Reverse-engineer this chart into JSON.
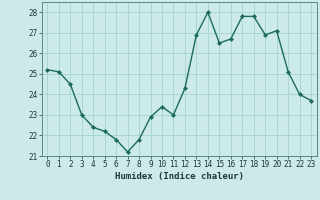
{
  "x": [
    0,
    1,
    2,
    3,
    4,
    5,
    6,
    7,
    8,
    9,
    10,
    11,
    12,
    13,
    14,
    15,
    16,
    17,
    18,
    19,
    20,
    21,
    22,
    23
  ],
  "y": [
    25.2,
    25.1,
    24.5,
    23.0,
    22.4,
    22.2,
    21.8,
    21.2,
    21.8,
    22.9,
    23.4,
    23.0,
    24.3,
    26.9,
    28.0,
    26.5,
    26.7,
    27.8,
    27.8,
    26.9,
    27.1,
    25.1,
    24.0,
    23.7
  ],
  "line_color": "#1c6b5e",
  "marker": "D",
  "marker_size": 2.0,
  "bg_color": "#cceae7",
  "grid_color": "#9ed0ca",
  "xlabel": "Humidex (Indice chaleur)",
  "ylim": [
    21,
    28.5
  ],
  "yticks": [
    21,
    22,
    23,
    24,
    25,
    26,
    27,
    28
  ],
  "xticks": [
    0,
    1,
    2,
    3,
    4,
    5,
    6,
    7,
    8,
    9,
    10,
    11,
    12,
    13,
    14,
    15,
    16,
    17,
    18,
    19,
    20,
    21,
    22,
    23
  ],
  "tick_fontsize": 5.5,
  "xlabel_fontsize": 6.5,
  "line_width": 1.0
}
